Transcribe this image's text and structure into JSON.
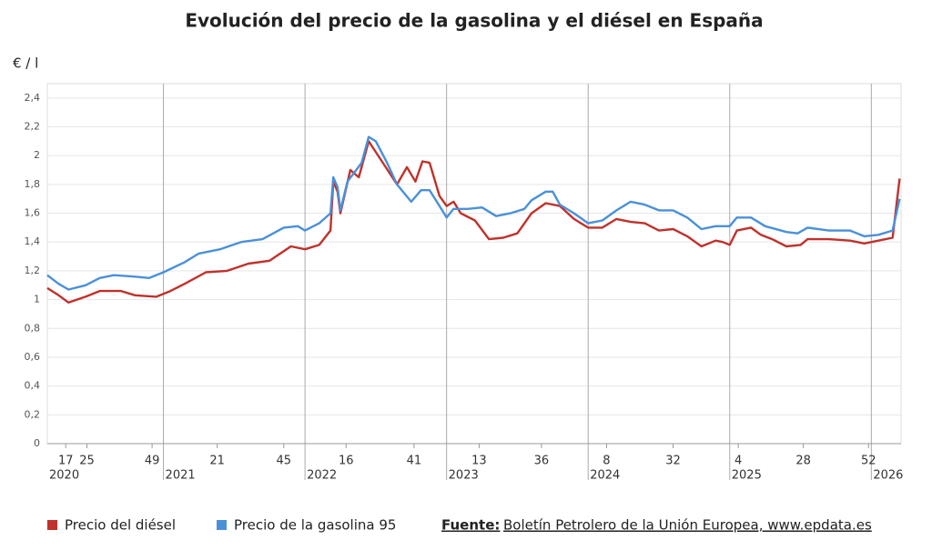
{
  "chart_data": {
    "type": "line",
    "title": "Evolución del precio de la gasolina y el diésel en España",
    "y_label": "€ / l",
    "xlim": [
      2020.18,
      2026.21
    ],
    "ylim": [
      0,
      2.5
    ],
    "yticks": [
      0,
      {
        "value": 0.2,
        "label": "0,2"
      },
      {
        "value": 0.4,
        "label": "0,4"
      },
      {
        "value": 0.6,
        "label": "0,6"
      },
      {
        "value": 0.8,
        "label": "0,8"
      },
      1,
      {
        "value": 1.2,
        "label": "1,2"
      },
      {
        "value": 1.4,
        "label": "1,4"
      },
      {
        "value": 1.6,
        "label": "1,6"
      },
      {
        "value": 1.8,
        "label": "1,8"
      },
      2,
      {
        "value": 2.2,
        "label": "2,2"
      },
      {
        "value": 2.4,
        "label": "2,4"
      }
    ],
    "xticks": [
      {
        "value": 2020.31,
        "label": "17"
      },
      {
        "value": 2020.46,
        "label": "25"
      },
      {
        "value": 2020.92,
        "label": "49"
      },
      {
        "value": 2021.38,
        "label": "21"
      },
      {
        "value": 2021.85,
        "label": "45"
      },
      {
        "value": 2022.29,
        "label": "16"
      },
      {
        "value": 2022.77,
        "label": "41"
      },
      {
        "value": 2023.23,
        "label": "13"
      },
      {
        "value": 2023.67,
        "label": "36"
      },
      {
        "value": 2024.13,
        "label": "8"
      },
      {
        "value": 2024.6,
        "label": "32"
      },
      {
        "value": 2025.06,
        "label": "4"
      },
      {
        "value": 2025.52,
        "label": "28"
      },
      {
        "value": 2025.98,
        "label": "52"
      }
    ],
    "year_ticks": [
      {
        "value": 2020.18,
        "label": "2020"
      },
      2021,
      2022,
      2023,
      2024,
      2025,
      2026
    ],
    "grid": true,
    "series": [
      {
        "name": "Precio del diésel",
        "color": "#c0312b",
        "x": [
          2020.18,
          2020.26,
          2020.33,
          2020.45,
          2020.55,
          2020.7,
          2020.8,
          2020.95,
          2021.05,
          2021.15,
          2021.3,
          2021.45,
          2021.6,
          2021.75,
          2021.9,
          2022.0,
          2022.1,
          2022.18,
          2022.2,
          2022.23,
          2022.25,
          2022.32,
          2022.38,
          2022.45,
          2022.55,
          2022.65,
          2022.72,
          2022.78,
          2022.83,
          2022.88,
          2022.95,
          2023.0,
          2023.05,
          2023.1,
          2023.2,
          2023.3,
          2023.4,
          2023.5,
          2023.6,
          2023.7,
          2023.8,
          2023.9,
          2024.0,
          2024.1,
          2024.2,
          2024.3,
          2024.4,
          2024.5,
          2024.6,
          2024.7,
          2024.8,
          2024.9,
          2024.95,
          2025.0,
          2025.05,
          2025.15,
          2025.22,
          2025.3,
          2025.4,
          2025.5,
          2025.55,
          2025.7,
          2025.85,
          2025.95,
          2026.05,
          2026.15,
          2026.2
        ],
        "values": [
          1.08,
          1.03,
          0.98,
          1.02,
          1.06,
          1.06,
          1.03,
          1.02,
          1.06,
          1.11,
          1.19,
          1.2,
          1.25,
          1.27,
          1.37,
          1.35,
          1.38,
          1.48,
          1.82,
          1.75,
          1.6,
          1.9,
          1.85,
          2.1,
          1.95,
          1.8,
          1.92,
          1.82,
          1.96,
          1.95,
          1.72,
          1.65,
          1.68,
          1.6,
          1.55,
          1.42,
          1.43,
          1.46,
          1.6,
          1.67,
          1.65,
          1.56,
          1.5,
          1.5,
          1.56,
          1.54,
          1.53,
          1.48,
          1.49,
          1.44,
          1.37,
          1.41,
          1.4,
          1.38,
          1.48,
          1.5,
          1.45,
          1.42,
          1.37,
          1.38,
          1.42,
          1.42,
          1.41,
          1.39,
          1.41,
          1.43,
          1.84
        ]
      },
      {
        "name": "Precio de la gasolina 95",
        "color": "#4a90d9",
        "x": [
          2020.18,
          2020.26,
          2020.33,
          2020.45,
          2020.55,
          2020.65,
          2020.8,
          2020.9,
          2021.0,
          2021.15,
          2021.25,
          2021.4,
          2021.55,
          2021.7,
          2021.85,
          2021.95,
          2022.0,
          2022.1,
          2022.18,
          2022.2,
          2022.23,
          2022.25,
          2022.3,
          2022.4,
          2022.45,
          2022.5,
          2022.58,
          2022.65,
          2022.75,
          2022.82,
          2022.88,
          2022.95,
          2023.0,
          2023.05,
          2023.15,
          2023.25,
          2023.35,
          2023.45,
          2023.55,
          2023.6,
          2023.7,
          2023.75,
          2023.8,
          2023.9,
          2024.0,
          2024.1,
          2024.2,
          2024.3,
          2024.4,
          2024.5,
          2024.6,
          2024.7,
          2024.8,
          2024.9,
          2025.0,
          2025.05,
          2025.15,
          2025.25,
          2025.4,
          2025.48,
          2025.55,
          2025.7,
          2025.85,
          2025.95,
          2026.05,
          2026.15,
          2026.2
        ],
        "values": [
          1.17,
          1.11,
          1.07,
          1.1,
          1.15,
          1.17,
          1.16,
          1.15,
          1.19,
          1.26,
          1.32,
          1.35,
          1.4,
          1.42,
          1.5,
          1.51,
          1.48,
          1.53,
          1.6,
          1.85,
          1.78,
          1.62,
          1.82,
          1.95,
          2.13,
          2.1,
          1.95,
          1.8,
          1.68,
          1.76,
          1.76,
          1.65,
          1.57,
          1.63,
          1.63,
          1.64,
          1.58,
          1.6,
          1.63,
          1.69,
          1.75,
          1.75,
          1.66,
          1.6,
          1.53,
          1.55,
          1.62,
          1.68,
          1.66,
          1.62,
          1.62,
          1.57,
          1.49,
          1.51,
          1.51,
          1.57,
          1.57,
          1.51,
          1.47,
          1.46,
          1.5,
          1.48,
          1.48,
          1.44,
          1.45,
          1.48,
          1.7
        ]
      }
    ],
    "source_label": "Fuente:",
    "source_text": "Boletín Petrolero de la Unión Europea, www.epdata.es"
  }
}
